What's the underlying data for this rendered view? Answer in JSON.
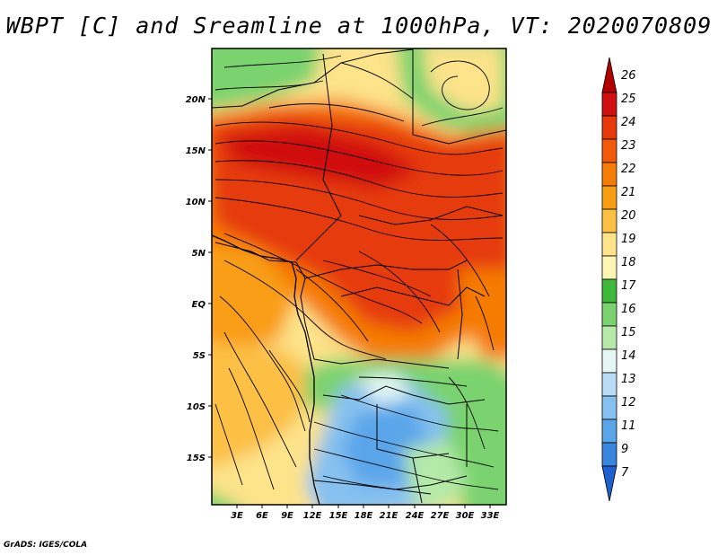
{
  "title": "WBPT [C] and Sreamline at 1000hPa, VT: 2020070809",
  "credit": "GrADS: IGES/COLA",
  "lat_labels": [
    "20N",
    "15N",
    "10N",
    "5N",
    "EQ",
    "5S",
    "10S",
    "15S"
  ],
  "lon_labels": [
    "3E",
    "6E",
    "9E",
    "12E",
    "15E",
    "18E",
    "21E",
    "24E",
    "27E",
    "30E",
    "33E"
  ],
  "colorbar": {
    "labels": [
      "26",
      "25",
      "24",
      "23",
      "22",
      "21",
      "20",
      "19",
      "18",
      "17",
      "16",
      "15",
      "14",
      "13",
      "12",
      "11",
      "9",
      "7"
    ],
    "colors": [
      "#b00000",
      "#d01010",
      "#e63a0c",
      "#f05a0a",
      "#f57c06",
      "#f99e14",
      "#fcc045",
      "#fde38a",
      "#fcf5b4",
      "#3db83a",
      "#7ad36e",
      "#b4e9a8",
      "#e4f7f4",
      "#b9dcf6",
      "#86c1f0",
      "#5aa5ea",
      "#3a86de",
      "#1f5fd0"
    ]
  },
  "map": {
    "variable": "Wet-bulb potential temperature",
    "unit": "C",
    "level": "1000hPa",
    "overlay": "Streamlines"
  }
}
